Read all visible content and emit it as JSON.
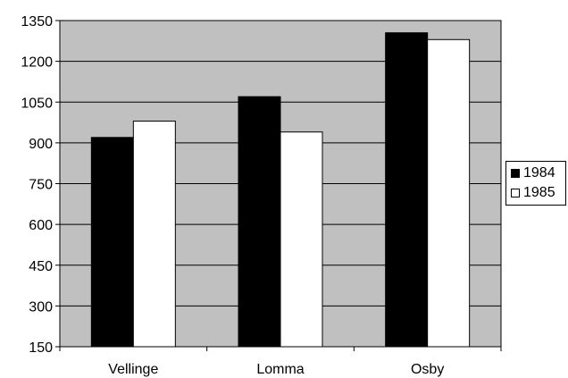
{
  "chart_data": {
    "type": "bar",
    "categories": [
      "Vellinge",
      "Lomma",
      "Osby"
    ],
    "series": [
      {
        "name": "1984",
        "values": [
          920,
          1070,
          1305
        ],
        "color": "#000000"
      },
      {
        "name": "1985",
        "values": [
          980,
          940,
          1280
        ],
        "color": "#ffffff"
      }
    ],
    "ylim": [
      150,
      1350
    ],
    "yticks": [
      "150",
      "300",
      "450",
      "600",
      "750",
      "900",
      "1050",
      "1200",
      "1350"
    ],
    "title": "",
    "xlabel": "",
    "ylabel": "",
    "grid": true,
    "plot_background": "#c0c0c0",
    "legend_position": "right"
  }
}
